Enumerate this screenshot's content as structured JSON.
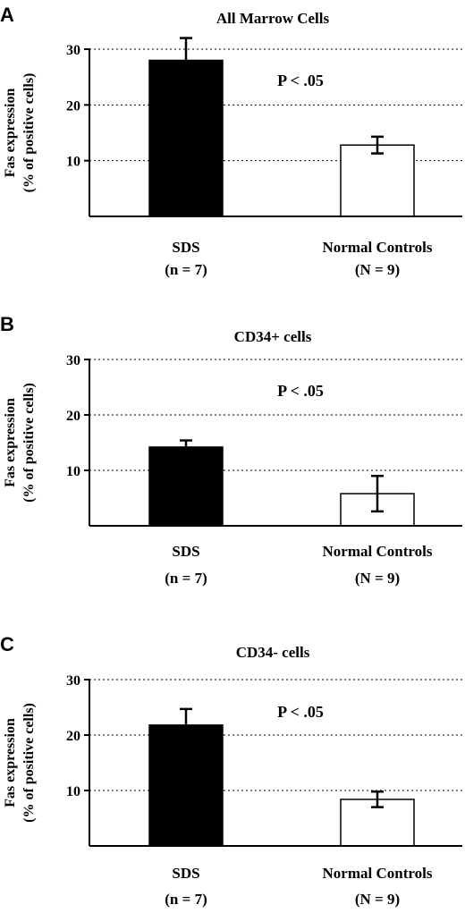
{
  "chart_data": [
    {
      "type": "bar",
      "panel": "A",
      "title": "All Marrow Cells",
      "ylabel_lines": [
        "Fas expression",
        "(% of positive cells)"
      ],
      "annotation": "P < .05",
      "ylim": [
        0,
        30
      ],
      "yticks": [
        10,
        20,
        30
      ],
      "grid": true,
      "categories": [
        {
          "lines": [
            "SDS",
            "(n = 7)"
          ],
          "value": 28,
          "error": 4,
          "fill": "#000000"
        },
        {
          "lines": [
            "Normal Controls",
            "(N = 9)"
          ],
          "value": 12.8,
          "error": 1.5,
          "fill": "#ffffff"
        }
      ]
    },
    {
      "type": "bar",
      "panel": "B",
      "title": "CD34+ cells",
      "ylabel_lines": [
        "Fas expression",
        "(% of positive cells)"
      ],
      "annotation": "P < .05",
      "ylim": [
        0,
        30
      ],
      "yticks": [
        10,
        20,
        30
      ],
      "grid": true,
      "categories": [
        {
          "lines": [
            "SDS",
            "(n = 7)"
          ],
          "value": 14.2,
          "error": 1.2,
          "fill": "#000000"
        },
        {
          "lines": [
            "Normal Controls",
            "(N = 9)"
          ],
          "value": 5.8,
          "error": 3.2,
          "fill": "#ffffff"
        }
      ]
    },
    {
      "type": "bar",
      "panel": "C",
      "title": "CD34- cells",
      "ylabel_lines": [
        "Fas expression",
        "(% of positive cells)"
      ],
      "annotation": "P < .05",
      "ylim": [
        0,
        30
      ],
      "yticks": [
        10,
        20,
        30
      ],
      "grid": true,
      "categories": [
        {
          "lines": [
            "SDS",
            "(n = 7)"
          ],
          "value": 21.8,
          "error": 2.9,
          "fill": "#000000"
        },
        {
          "lines": [
            "Normal Controls",
            "(N = 9)"
          ],
          "value": 8.4,
          "error": 1.4,
          "fill": "#ffffff"
        }
      ]
    }
  ]
}
